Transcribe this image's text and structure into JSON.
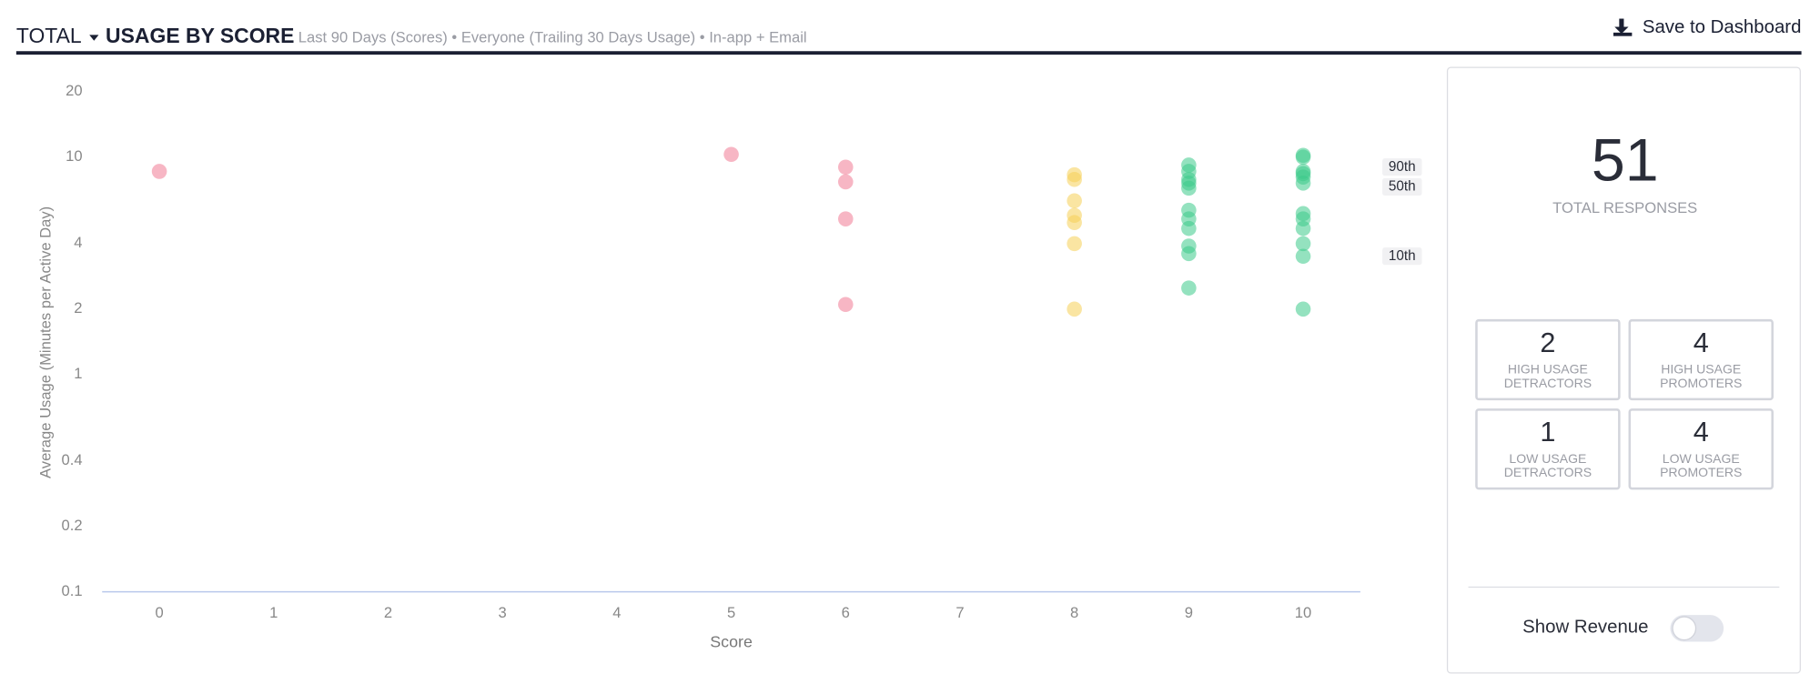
{
  "header": {
    "menu": "TOTAL",
    "title": "USAGE BY SCORE",
    "subtitle": "Last 90 Days (Scores) • Everyone (Trailing 30 Days Usage) • In-app + Email",
    "action": "Save to Dashboard"
  },
  "chart_data": {
    "type": "scatter",
    "x_label": "Score",
    "y_label": "Average Usage (Minutes per Active Day)",
    "xlim": [
      -0.5,
      10.5
    ],
    "xticks": [
      0,
      1,
      2,
      3,
      4,
      5,
      6,
      7,
      8,
      9,
      10
    ],
    "ylim": [
      0.1,
      20
    ],
    "yticks": [
      0.1,
      0.2,
      0.4,
      1,
      2,
      4,
      10,
      20
    ],
    "log_scale": true,
    "series": [
      {
        "color": "#f07a93",
        "x": [
          0,
          5,
          6,
          6,
          6,
          6
        ],
        "values": [
          8.6,
          10.3,
          9.0,
          7.7,
          5.2,
          2.1
        ]
      },
      {
        "color": "#f6cf55",
        "x": [
          8,
          8,
          8,
          8,
          8,
          8,
          8
        ],
        "values": [
          8.3,
          7.9,
          6.3,
          5.4,
          5.0,
          4.0,
          2.0
        ]
      },
      {
        "color": "#3ccb8a",
        "x": [
          9,
          9,
          9,
          9,
          9,
          9,
          9,
          9,
          9,
          9,
          9,
          10,
          10,
          10,
          10,
          10,
          10,
          10,
          10,
          10,
          10,
          10,
          10
        ],
        "values": [
          9.2,
          8.6,
          7.9,
          7.6,
          7.2,
          5.7,
          5.2,
          4.7,
          3.9,
          3.6,
          2.5,
          10.2,
          10.0,
          8.6,
          8.4,
          8.1,
          7.6,
          5.5,
          5.2,
          4.7,
          4.0,
          3.5,
          2.0
        ]
      }
    ],
    "percentiles": [
      {
        "label": "90th",
        "value": 9.0
      },
      {
        "label": "50th",
        "value": 7.3
      },
      {
        "label": "10th",
        "value": 3.5
      }
    ]
  },
  "panel": {
    "total": "51",
    "total_label": "TOTAL RESPONSES",
    "boxes": [
      {
        "number": "2",
        "label": [
          "HIGH USAGE",
          "DETRACTORS"
        ]
      },
      {
        "number": "4",
        "label": [
          "HIGH USAGE",
          "PROMOTERS"
        ]
      },
      {
        "number": "1",
        "label": [
          "LOW USAGE",
          "DETRACTORS"
        ]
      },
      {
        "number": "4",
        "label": [
          "LOW USAGE",
          "PROMOTERS"
        ]
      }
    ],
    "toggle_label": "Show Revenue"
  }
}
